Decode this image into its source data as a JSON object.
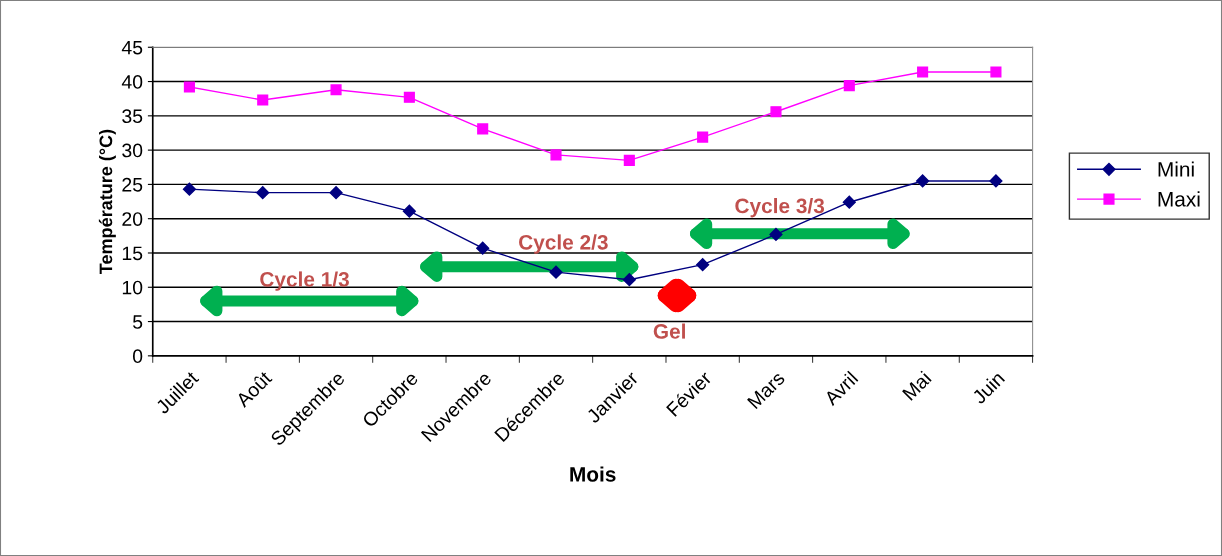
{
  "chart_data": {
    "type": "line",
    "xlabel": "Mois",
    "ylabel": "Température (°C)",
    "categories": [
      "Juillet",
      "Août",
      "Septembre",
      "Octobre",
      "Novembre",
      "Décembre",
      "Janvier",
      "Févier",
      "Mars",
      "Avril",
      "Mai",
      "Juin"
    ],
    "series": [
      {
        "name": "Mini",
        "color": "#000080",
        "marker": "diamond",
        "values": [
          24.3,
          23.8,
          23.8,
          21.1,
          15.7,
          12.2,
          11.1,
          13.3,
          17.7,
          22.4,
          25.5,
          25.5
        ]
      },
      {
        "name": "Maxi",
        "color": "#ff00ff",
        "marker": "square",
        "values": [
          39.2,
          37.3,
          38.8,
          37.7,
          33.1,
          29.3,
          28.5,
          31.9,
          35.6,
          39.4,
          41.4,
          41.4
        ]
      }
    ],
    "ylim": [
      0,
      45
    ],
    "yticks": [
      0,
      5,
      10,
      15,
      20,
      25,
      30,
      35,
      40,
      45
    ],
    "grid": "y",
    "legend": "right",
    "line_style": "solid",
    "annotations": [
      "Cycle 1/3",
      "Cycle 2/3",
      "Cycle 3/3",
      "Gel"
    ]
  }
}
